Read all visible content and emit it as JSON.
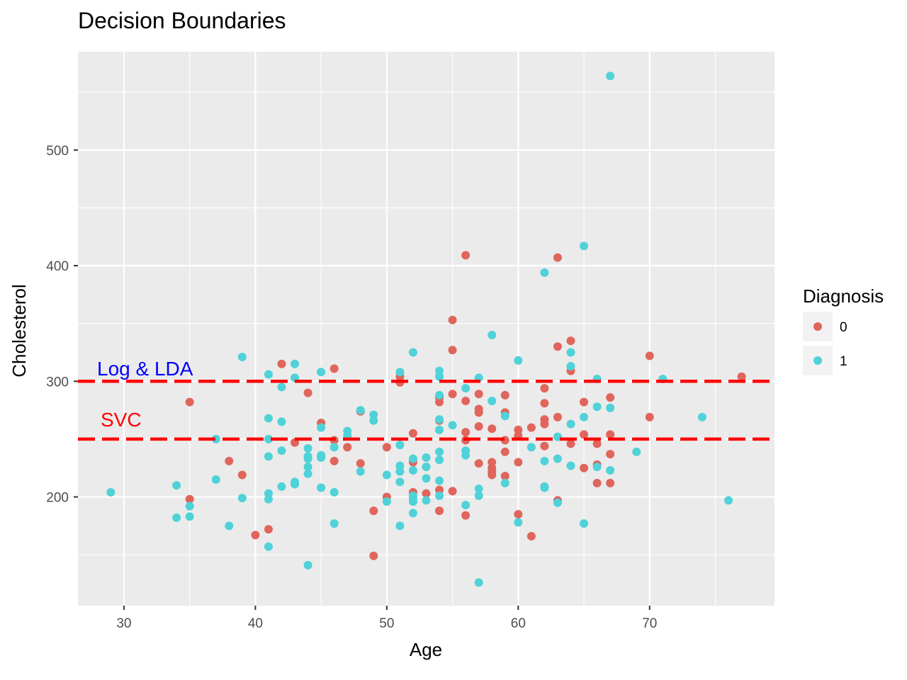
{
  "chart_data": {
    "type": "scatter",
    "title": "Decision Boundaries",
    "xlabel": "Age",
    "ylabel": "Cholesterol",
    "xlim": [
      26.5,
      79.5
    ],
    "ylim": [
      106,
      585
    ],
    "x_ticks": [
      30,
      40,
      50,
      60,
      70
    ],
    "y_ticks": [
      200,
      300,
      400,
      500
    ],
    "grid": true,
    "legend": {
      "title": "Diagnosis",
      "position": "right",
      "entries": [
        {
          "label": "0",
          "color": "#e0655c"
        },
        {
          "label": "1",
          "color": "#4fd2d8"
        }
      ]
    },
    "hlines": [
      {
        "y": 300,
        "label": "Log & LDA",
        "label_color": "#0000ff",
        "color": "#ff0000",
        "dash": true
      },
      {
        "y": 250,
        "label": "SVC",
        "label_color": "#ff0000",
        "color": "#ff0000",
        "dash": true
      }
    ],
    "series": [
      {
        "name": "0",
        "color": "#e0655c",
        "points": [
          [
            35,
            282
          ],
          [
            35,
            198
          ],
          [
            38,
            231
          ],
          [
            39,
            219
          ],
          [
            40,
            167
          ],
          [
            41,
            172
          ],
          [
            42,
            315
          ],
          [
            43,
            247
          ],
          [
            44,
            290
          ],
          [
            45,
            264
          ],
          [
            46,
            311
          ],
          [
            46,
            249
          ],
          [
            46,
            231
          ],
          [
            47,
            243
          ],
          [
            48,
            274
          ],
          [
            48,
            229
          ],
          [
            49,
            188
          ],
          [
            49,
            149
          ],
          [
            50,
            243
          ],
          [
            50,
            200
          ],
          [
            51,
            304
          ],
          [
            51,
            299
          ],
          [
            52,
            255
          ],
          [
            52,
            230
          ],
          [
            52,
            204
          ],
          [
            53,
            203
          ],
          [
            54,
            282
          ],
          [
            54,
            286
          ],
          [
            54,
            266
          ],
          [
            54,
            206
          ],
          [
            54,
            188
          ],
          [
            55,
            353
          ],
          [
            55,
            327
          ],
          [
            55,
            289
          ],
          [
            55,
            205
          ],
          [
            56,
            409
          ],
          [
            56,
            283
          ],
          [
            56,
            256
          ],
          [
            56,
            249
          ],
          [
            56,
            184
          ],
          [
            57,
            289
          ],
          [
            57,
            276
          ],
          [
            57,
            273
          ],
          [
            57,
            261
          ],
          [
            57,
            229
          ],
          [
            58,
            259
          ],
          [
            58,
            230
          ],
          [
            58,
            225
          ],
          [
            58,
            222
          ],
          [
            58,
            219
          ],
          [
            59,
            288
          ],
          [
            59,
            273
          ],
          [
            59,
            249
          ],
          [
            59,
            239
          ],
          [
            59,
            218
          ],
          [
            60,
            258
          ],
          [
            60,
            253
          ],
          [
            60,
            230
          ],
          [
            60,
            185
          ],
          [
            61,
            260
          ],
          [
            61,
            166
          ],
          [
            62,
            294
          ],
          [
            62,
            281
          ],
          [
            62,
            267
          ],
          [
            62,
            263
          ],
          [
            62,
            244
          ],
          [
            63,
            407
          ],
          [
            63,
            330
          ],
          [
            63,
            269
          ],
          [
            63,
            197
          ],
          [
            64,
            335
          ],
          [
            64,
            309
          ],
          [
            64,
            246
          ],
          [
            65,
            282
          ],
          [
            65,
            254
          ],
          [
            65,
            225
          ],
          [
            66,
            246
          ],
          [
            66,
            228
          ],
          [
            66,
            212
          ],
          [
            67,
            286
          ],
          [
            67,
            254
          ],
          [
            67,
            237
          ],
          [
            67,
            212
          ],
          [
            70,
            322
          ],
          [
            70,
            269
          ],
          [
            77,
            304
          ]
        ]
      },
      {
        "name": "1",
        "color": "#4fd2d8",
        "points": [
          [
            29,
            204
          ],
          [
            34,
            210
          ],
          [
            34,
            182
          ],
          [
            35,
            192
          ],
          [
            35,
            183
          ],
          [
            37,
            250
          ],
          [
            37,
            215
          ],
          [
            38,
            175
          ],
          [
            39,
            321
          ],
          [
            39,
            199
          ],
          [
            41,
            306
          ],
          [
            41,
            268
          ],
          [
            41,
            250
          ],
          [
            41,
            235
          ],
          [
            41,
            203
          ],
          [
            41,
            198
          ],
          [
            41,
            157
          ],
          [
            42,
            295
          ],
          [
            42,
            265
          ],
          [
            42,
            240
          ],
          [
            42,
            209
          ],
          [
            43,
            315
          ],
          [
            43,
            303
          ],
          [
            43,
            213
          ],
          [
            43,
            211
          ],
          [
            44,
            242
          ],
          [
            44,
            235
          ],
          [
            44,
            233
          ],
          [
            44,
            226
          ],
          [
            44,
            220
          ],
          [
            44,
            141
          ],
          [
            45,
            308
          ],
          [
            45,
            260
          ],
          [
            45,
            236
          ],
          [
            45,
            234
          ],
          [
            45,
            208
          ],
          [
            46,
            243
          ],
          [
            46,
            204
          ],
          [
            46,
            177
          ],
          [
            47,
            257
          ],
          [
            47,
            253
          ],
          [
            48,
            275
          ],
          [
            48,
            222
          ],
          [
            49,
            271
          ],
          [
            49,
            266
          ],
          [
            50,
            219
          ],
          [
            50,
            196
          ],
          [
            51,
            308
          ],
          [
            51,
            245
          ],
          [
            51,
            227
          ],
          [
            51,
            222
          ],
          [
            51,
            213
          ],
          [
            51,
            175
          ],
          [
            52,
            325
          ],
          [
            52,
            233
          ],
          [
            52,
            223
          ],
          [
            52,
            201
          ],
          [
            52,
            199
          ],
          [
            52,
            196
          ],
          [
            52,
            186
          ],
          [
            53,
            234
          ],
          [
            53,
            226
          ],
          [
            53,
            216
          ],
          [
            53,
            197
          ],
          [
            54,
            309
          ],
          [
            54,
            304
          ],
          [
            54,
            288
          ],
          [
            54,
            267
          ],
          [
            54,
            258
          ],
          [
            54,
            239
          ],
          [
            54,
            232
          ],
          [
            54,
            214
          ],
          [
            54,
            201
          ],
          [
            55,
            262
          ],
          [
            56,
            294
          ],
          [
            56,
            240
          ],
          [
            56,
            236
          ],
          [
            56,
            193
          ],
          [
            57,
            303
          ],
          [
            57,
            207
          ],
          [
            57,
            201
          ],
          [
            57,
            126
          ],
          [
            58,
            340
          ],
          [
            58,
            283
          ],
          [
            59,
            270
          ],
          [
            59,
            212
          ],
          [
            60,
            318
          ],
          [
            60,
            178
          ],
          [
            61,
            243
          ],
          [
            62,
            394
          ],
          [
            62,
            231
          ],
          [
            62,
            209
          ],
          [
            62,
            208
          ],
          [
            63,
            252
          ],
          [
            63,
            233
          ],
          [
            63,
            195
          ],
          [
            64,
            325
          ],
          [
            64,
            313
          ],
          [
            64,
            263
          ],
          [
            64,
            227
          ],
          [
            65,
            417
          ],
          [
            65,
            269
          ],
          [
            65,
            177
          ],
          [
            66,
            302
          ],
          [
            66,
            278
          ],
          [
            66,
            226
          ],
          [
            67,
            564
          ],
          [
            67,
            277
          ],
          [
            67,
            223
          ],
          [
            69,
            239
          ],
          [
            71,
            302
          ],
          [
            74,
            269
          ],
          [
            76,
            197
          ]
        ]
      }
    ]
  }
}
